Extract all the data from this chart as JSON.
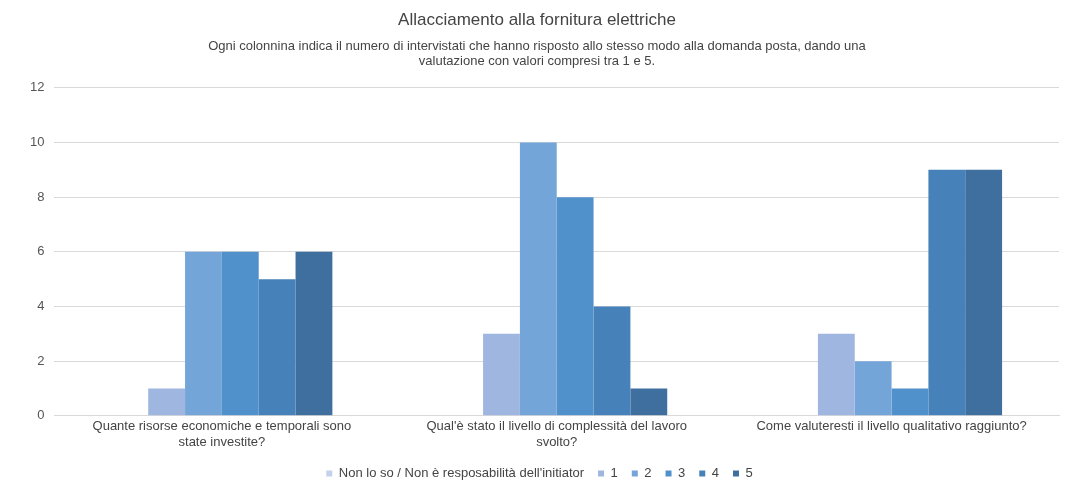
{
  "chart_data": {
    "type": "bar",
    "title": "Allacciamento alla fornitura elettriche",
    "subtitle": "Ogni colonnina indica il numero di intervistati che hanno risposto allo stesso modo alla domanda posta, dando una valutazione con valori compresi tra 1 e 5.",
    "categories": [
      "Quante risorse economiche e temporali sono state investite?",
      "Qual'è stato il livello di complessità del lavoro svolto?",
      "Come valuteresti il livello qualitativo raggiunto?"
    ],
    "series": [
      {
        "name": "Non lo so / Non è resposabilità dell'initiator",
        "color": "#c3d1ea",
        "values": [
          0,
          0,
          0
        ]
      },
      {
        "name": "1",
        "color": "#9fb6e0",
        "values": [
          1,
          3,
          3
        ]
      },
      {
        "name": "2",
        "color": "#74a5d9",
        "values": [
          6,
          10,
          2
        ]
      },
      {
        "name": "3",
        "color": "#5091cc",
        "values": [
          6,
          8,
          1
        ]
      },
      {
        "name": "4",
        "color": "#4681b9",
        "values": [
          5,
          4,
          9
        ]
      },
      {
        "name": "5",
        "color": "#3f6f9f",
        "values": [
          6,
          1,
          9
        ]
      }
    ],
    "ylim": [
      0,
      12
    ],
    "yticks": [
      0,
      2,
      4,
      6,
      8,
      10,
      12
    ],
    "grid": "y",
    "legend": "bottom"
  }
}
